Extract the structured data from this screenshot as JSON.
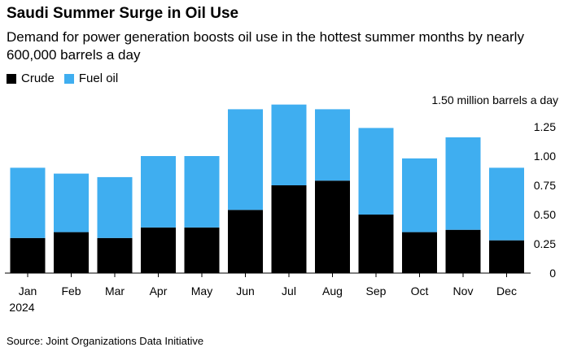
{
  "title": "Saudi Summer Surge in Oil Use",
  "subtitle": "Demand for power generation boosts oil use in the hottest summer months by nearly 600,000 barrels a day",
  "source": "Source: Joint Organizations Data Initiative",
  "colors": {
    "crude": "#000000",
    "fuel_oil": "#3FAEF0",
    "axis": "#000000"
  },
  "chart_data": {
    "type": "bar",
    "stacked": true,
    "title": "Saudi Summer Surge in Oil Use",
    "categories": [
      "Jan",
      "Feb",
      "Mar",
      "Apr",
      "May",
      "Jun",
      "Jul",
      "Aug",
      "Sep",
      "Oct",
      "Nov",
      "Dec"
    ],
    "year_label": "2024",
    "series": [
      {
        "name": "Crude",
        "values": [
          0.3,
          0.35,
          0.3,
          0.39,
          0.39,
          0.54,
          0.75,
          0.79,
          0.5,
          0.35,
          0.37,
          0.28
        ]
      },
      {
        "name": "Fuel oil",
        "values": [
          0.6,
          0.5,
          0.52,
          0.61,
          0.61,
          0.86,
          0.69,
          0.61,
          0.74,
          0.63,
          0.79,
          0.62
        ]
      }
    ],
    "y_axis": {
      "unit_label": "1.50 million barrels a day",
      "ticks": [
        "1.25",
        "1.00",
        "0.75",
        "0.50",
        "0.25",
        "0"
      ],
      "tick_values": [
        1.25,
        1.0,
        0.75,
        0.5,
        0.25,
        0
      ],
      "ylim": [
        0,
        1.5
      ],
      "position": "right"
    },
    "legend_position": "top-left"
  }
}
